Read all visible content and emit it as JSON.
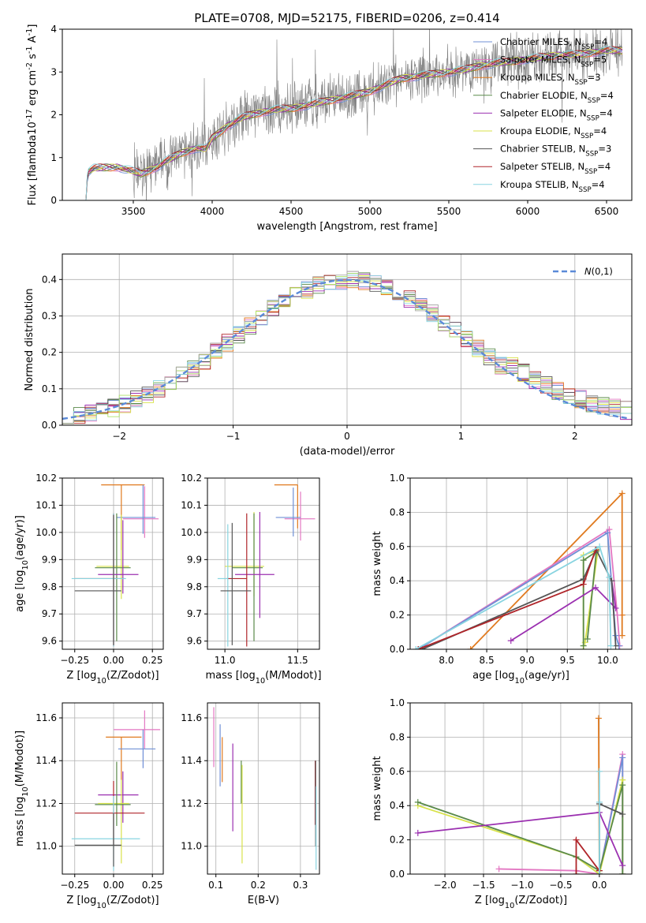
{
  "colors": {
    "Chabrier MILES": "#6f8fd6",
    "Salpeter MILES": "#e377c2",
    "Kroupa MILES": "#e07a1f",
    "Chabrier ELODIE": "#5a8a4a",
    "Salpeter ELODIE": "#9b30b0",
    "Kroupa ELODIE": "#d8e24a",
    "Chabrier STELIB": "#555555",
    "Salpeter STELIB": "#b0252a",
    "Kroupa STELIB": "#88d4e0",
    "data": "#808080",
    "normal": "#5b8ad8",
    "aux1": "#aee36a",
    "aux2": "#a9a9a9"
  },
  "chart_data": [
    {
      "id": "spectrum",
      "type": "line",
      "title": "PLATE=0708, MJD=52175, FIBERID=0206, z=0.414",
      "xlabel": "wavelength [Angstrom, rest frame]",
      "ylabel": "Flux [f$_\\lambda$10$^{-17}$ erg cm$^{-2}$ s$^{-1}$ A$^{-1}$]",
      "xlim": [
        3050,
        6660
      ],
      "ylim": [
        0,
        4
      ],
      "xticks": [
        "3500",
        "4000",
        "4500",
        "5000",
        "5500",
        "6000",
        "6500"
      ],
      "yticks": [
        "0",
        "1",
        "2",
        "3",
        "4"
      ],
      "grid": false,
      "legend_position": "right",
      "legend": [
        {
          "name": "Chabrier MILES",
          "nssp": "4"
        },
        {
          "name": "Salpeter MILES",
          "nssp": "5"
        },
        {
          "name": "Kroupa MILES",
          "nssp": "3"
        },
        {
          "name": "Chabrier ELODIE",
          "nssp": "4"
        },
        {
          "name": "Salpeter ELODIE",
          "nssp": "4"
        },
        {
          "name": "Kroupa ELODIE",
          "nssp": "4"
        },
        {
          "name": "Chabrier STELIB",
          "nssp": "3"
        },
        {
          "name": "Salpeter STELIB",
          "nssp": "4"
        },
        {
          "name": "Kroupa STELIB",
          "nssp": "4"
        }
      ],
      "model_curve": {
        "x": [
          3200,
          3210,
          3250,
          3400,
          3480,
          3550,
          3650,
          3700,
          3800,
          3900,
          3960,
          4000,
          4100,
          4200,
          4300,
          4400,
          4500,
          4600,
          4700,
          4800,
          4900,
          5000,
          5100,
          5200,
          5300,
          5400,
          5500,
          5600,
          5700,
          5800,
          5900,
          6000,
          6100,
          6200,
          6300,
          6400,
          6500,
          6600
        ],
        "y": [
          0.0,
          0.65,
          0.75,
          0.78,
          0.7,
          0.62,
          0.78,
          0.9,
          1.1,
          1.22,
          1.2,
          1.45,
          1.75,
          1.95,
          2.05,
          2.12,
          2.15,
          2.22,
          2.3,
          2.38,
          2.45,
          2.55,
          2.7,
          2.85,
          2.9,
          2.95,
          3.0,
          3.05,
          3.15,
          3.2,
          3.25,
          3.3,
          3.35,
          3.4,
          3.4,
          3.45,
          3.5,
          3.5
        ]
      },
      "data_noise_start": 3500,
      "data_noise_amplitude": 0.9
    },
    {
      "id": "residuals",
      "type": "histogram",
      "xlabel": "(data-model)/error",
      "ylabel": "Normed distribution",
      "xlim": [
        -2.5,
        2.5
      ],
      "ylim": [
        0,
        0.47
      ],
      "xticks": [
        "−2",
        "−1",
        "0",
        "1",
        "2"
      ],
      "yticks": [
        "0.0",
        "0.1",
        "0.2",
        "0.3",
        "0.4"
      ],
      "grid": true,
      "legend_position": "upper right",
      "legend": "$\\mathcal{N}(0,1)$",
      "bin_width": 0.1,
      "normal_mean": 0,
      "normal_sigma": 1
    },
    {
      "id": "age-vs-Z",
      "type": "errorbar",
      "xlabel": "Z [log$_{10}$(Z/Z$_\\odot$)]",
      "ylabel": "age  [log$_{10}$(age/yr)]",
      "xlim": [
        -0.33,
        0.32
      ],
      "ylim": [
        9.57,
        10.2
      ],
      "xticks": [
        "−0.25",
        "0.00",
        "0.25"
      ],
      "yticks": [
        "9.6",
        "9.7",
        "9.8",
        "9.9",
        "10.0",
        "10.1",
        "10.2"
      ],
      "points": [
        {
          "model": "Kroupa MILES",
          "x": 0.05,
          "y": 10.175,
          "xerr": [
            0.13,
            0.15
          ],
          "yerr": [
            0.24,
            0.0
          ]
        },
        {
          "model": "Salpeter MILES",
          "x": 0.2,
          "y": 10.05,
          "xerr": [
            0.14,
            0.09
          ],
          "yerr": [
            0.07,
            0.12
          ]
        },
        {
          "model": "Chabrier MILES",
          "x": 0.19,
          "y": 10.055,
          "xerr": [
            0.17,
            0.08
          ],
          "yerr": [
            0.06,
            0.12
          ]
        },
        {
          "model": "Kroupa ELODIE",
          "x": 0.05,
          "y": 9.875,
          "xerr": [
            0.16,
            0.05
          ],
          "yerr": [
            0.12,
            0.19
          ]
        },
        {
          "model": "Chabrier ELODIE",
          "x": 0.02,
          "y": 9.87,
          "xerr": [
            0.14,
            0.09
          ],
          "yerr": [
            0.27,
            0.2
          ]
        },
        {
          "model": "Salpeter ELODIE",
          "x": 0.06,
          "y": 9.845,
          "xerr": [
            0.16,
            0.1
          ],
          "yerr": [
            0.07,
            0.2
          ]
        },
        {
          "model": "Salpeter STELIB",
          "x": 0.0,
          "y": 9.83,
          "xerr": [
            0.25,
            0.07
          ],
          "yerr": [
            0.25,
            0.24
          ]
        },
        {
          "model": "Kroupa STELIB",
          "x": 0.0,
          "y": 9.83,
          "xerr": [
            0.27,
            0.08
          ],
          "yerr": [
            0.25,
            0.24
          ]
        },
        {
          "model": "Chabrier STELIB",
          "x": 0.0,
          "y": 9.785,
          "xerr": [
            0.25,
            0.05
          ],
          "yerr": [
            0.2,
            0.28
          ]
        }
      ]
    },
    {
      "id": "age-vs-mass",
      "type": "errorbar",
      "xlabel": "mass [log$_{10}$(M/M$_\\odot$)]",
      "ylabel": "",
      "xlim": [
        10.88,
        11.65
      ],
      "ylim": [
        9.57,
        10.2
      ],
      "xticks": [
        "11.0",
        "11.5"
      ],
      "yticks": [
        "9.6",
        "9.7",
        "9.8",
        "9.9",
        "10.0",
        "10.1",
        "10.2"
      ],
      "points": [
        {
          "model": "Kroupa MILES",
          "x": 11.5,
          "y": 10.175,
          "xerr": [
            0.16,
            0.0
          ],
          "yerr": [
            0.16,
            0.0
          ]
        },
        {
          "model": "Salpeter MILES",
          "x": 11.52,
          "y": 10.05,
          "xerr": [
            0.11,
            0.1
          ],
          "yerr": [
            0.08,
            0.1
          ]
        },
        {
          "model": "Chabrier MILES",
          "x": 11.47,
          "y": 10.055,
          "xerr": [
            0.12,
            0.05
          ],
          "yerr": [
            0.07,
            0.11
          ]
        },
        {
          "model": "Kroupa ELODIE",
          "x": 11.2,
          "y": 9.875,
          "xerr": [
            0.2,
            0.07
          ],
          "yerr": [
            0.11,
            0.2
          ]
        },
        {
          "model": "Chabrier ELODIE",
          "x": 11.2,
          "y": 9.87,
          "xerr": [
            0.15,
            0.06
          ],
          "yerr": [
            0.27,
            0.2
          ]
        },
        {
          "model": "Salpeter ELODIE",
          "x": 11.24,
          "y": 9.845,
          "xerr": [
            0.17,
            0.1
          ],
          "yerr": [
            0.16,
            0.23
          ]
        },
        {
          "model": "Salpeter STELIB",
          "x": 11.15,
          "y": 9.83,
          "xerr": [
            0.14,
            0.0
          ],
          "yerr": [
            0.25,
            0.24
          ]
        },
        {
          "model": "Kroupa STELIB",
          "x": 11.02,
          "y": 9.83,
          "xerr": [
            0.07,
            0.0
          ],
          "yerr": [
            0.25,
            0.2
          ]
        },
        {
          "model": "Chabrier STELIB",
          "x": 11.05,
          "y": 9.785,
          "xerr": [
            0.08,
            0.13
          ],
          "yerr": [
            0.2,
            0.25
          ]
        }
      ]
    },
    {
      "id": "mass-weight-vs-age",
      "type": "line",
      "xlabel": "age  [log$_{10}$(age/yr)]",
      "ylabel": "mass weight",
      "xlim": [
        7.55,
        10.3
      ],
      "ylim": [
        0,
        1
      ],
      "xticks": [
        "8.0",
        "8.5",
        "9.0",
        "9.5",
        "10.0"
      ],
      "yticks": [
        "0.0",
        "0.2",
        "0.4",
        "0.6",
        "0.8",
        "1.0"
      ],
      "grid": true,
      "series": [
        {
          "model": "Kroupa MILES",
          "x": [
            8.3,
            10.18,
            10.18,
            10.18
          ],
          "y": [
            0.0,
            0.91,
            0.2,
            0.08
          ]
        },
        {
          "model": "Salpeter MILES",
          "x": [
            7.65,
            10.02,
            10.12,
            10.15
          ],
          "y": [
            0.0,
            0.7,
            0.2,
            0.02
          ]
        },
        {
          "model": "Chabrier MILES",
          "x": [
            7.65,
            10.0,
            10.1,
            10.14
          ],
          "y": [
            0.0,
            0.68,
            0.08,
            0.02
          ]
        },
        {
          "model": "Kroupa ELODIE",
          "x": [
            9.7,
            9.7,
            9.88,
            9.72
          ],
          "y": [
            0.0,
            0.55,
            0.58,
            0.04
          ]
        },
        {
          "model": "Chabrier ELODIE",
          "x": [
            9.7,
            9.7,
            9.86,
            9.75
          ],
          "y": [
            0.02,
            0.52,
            0.57,
            0.06
          ]
        },
        {
          "model": "Salpeter ELODIE",
          "x": [
            8.8,
            9.85,
            10.1,
            10.05
          ],
          "y": [
            0.05,
            0.36,
            0.24,
            0.4
          ]
        },
        {
          "model": "Chabrier STELIB",
          "x": [
            7.7,
            9.7,
            9.86,
            10.05,
            10.1
          ],
          "y": [
            0.0,
            0.41,
            0.58,
            0.4,
            0.02
          ]
        },
        {
          "model": "Salpeter STELIB",
          "x": [
            7.65,
            9.7,
            9.85
          ],
          "y": [
            0.0,
            0.38,
            0.58
          ]
        },
        {
          "model": "Kroupa STELIB",
          "x": [
            7.62,
            9.9,
            10.02,
            10.04
          ],
          "y": [
            0.0,
            0.6,
            0.42,
            0.02
          ]
        }
      ]
    },
    {
      "id": "mass-vs-Z",
      "type": "errorbar",
      "xlabel": "Z [log$_{10}$(Z/Z$_\\odot$)]",
      "ylabel": "mass [log$_{10}$(M/M$_\\odot$)]",
      "xlim": [
        -0.33,
        0.32
      ],
      "ylim": [
        10.87,
        11.67
      ],
      "xticks": [
        "−0.25",
        "0.00",
        "0.25"
      ],
      "yticks": [
        "11.0",
        "11.2",
        "11.4",
        "11.6"
      ],
      "points": [
        {
          "model": "Salpeter MILES",
          "x": 0.2,
          "y": 11.545,
          "xerr": [
            0.2,
            0.1
          ],
          "yerr": [
            0.09,
            0.09
          ]
        },
        {
          "model": "Kroupa MILES",
          "x": 0.05,
          "y": 11.51,
          "xerr": [
            0.1,
            0.13
          ],
          "yerr": [
            0.2,
            0.0
          ]
        },
        {
          "model": "Chabrier MILES",
          "x": 0.19,
          "y": 11.455,
          "xerr": [
            0.16,
            0.08
          ],
          "yerr": [
            0.09,
            0.09
          ]
        },
        {
          "model": "Salpeter ELODIE",
          "x": 0.06,
          "y": 11.24,
          "xerr": [
            0.16,
            0.1
          ],
          "yerr": [
            0.13,
            0.11
          ]
        },
        {
          "model": "Kroupa ELODIE",
          "x": 0.05,
          "y": 11.2,
          "xerr": [
            0.15,
            0.05
          ],
          "yerr": [
            0.28,
            0.11
          ]
        },
        {
          "model": "Chabrier ELODIE",
          "x": 0.02,
          "y": 11.195,
          "xerr": [
            0.14,
            0.09
          ],
          "yerr": [
            0.1,
            0.2
          ]
        },
        {
          "model": "Salpeter STELIB",
          "x": 0.0,
          "y": 11.155,
          "xerr": [
            0.25,
            0.2
          ],
          "yerr": [
            0.15,
            0.15
          ]
        },
        {
          "model": "Kroupa STELIB",
          "x": 0.0,
          "y": 11.035,
          "xerr": [
            0.27,
            0.17
          ],
          "yerr": [
            0.15,
            0.2
          ]
        },
        {
          "model": "Chabrier STELIB",
          "x": 0.0,
          "y": 11.005,
          "xerr": [
            0.25,
            0.05
          ],
          "yerr": [
            0.1,
            0.15
          ]
        }
      ]
    },
    {
      "id": "mass-vs-ebv",
      "type": "errorbar",
      "xlabel": "E(B-V)",
      "ylabel": "",
      "xlim": [
        0.08,
        0.345
      ],
      "ylim": [
        10.87,
        11.67
      ],
      "xticks": [
        "0.1",
        "0.2",
        "0.3"
      ],
      "yticks": [
        "11.0",
        "11.2",
        "11.4",
        "11.6"
      ],
      "points": [
        {
          "model": "Salpeter MILES",
          "x": 0.095,
          "y": 11.5,
          "xerr": [
            0,
            0
          ],
          "yerr": [
            0.13,
            0.15
          ]
        },
        {
          "model": "Chabrier MILES",
          "x": 0.11,
          "y": 11.43,
          "xerr": [
            0,
            0
          ],
          "yerr": [
            0.15,
            0.14
          ]
        },
        {
          "model": "Kroupa MILES",
          "x": 0.115,
          "y": 11.4,
          "xerr": [
            0,
            0
          ],
          "yerr": [
            0.1,
            0.11
          ]
        },
        {
          "model": "Salpeter ELODIE",
          "x": 0.14,
          "y": 11.27,
          "xerr": [
            0,
            0
          ],
          "yerr": [
            0.2,
            0.21
          ]
        },
        {
          "model": "Chabrier ELODIE",
          "x": 0.16,
          "y": 11.35,
          "xerr": [
            0,
            0
          ],
          "yerr": [
            0.15,
            0.05
          ]
        },
        {
          "model": "Kroupa ELODIE",
          "x": 0.162,
          "y": 11.15,
          "xerr": [
            0,
            0
          ],
          "yerr": [
            0.23,
            0.23
          ]
        },
        {
          "model": "Salpeter STELIB",
          "x": 0.335,
          "y": 11.4,
          "xerr": [
            0,
            0
          ],
          "yerr": [
            0.3,
            0.0
          ]
        },
        {
          "model": "Chabrier STELIB",
          "x": 0.336,
          "y": 11.25,
          "xerr": [
            0,
            0
          ],
          "yerr": [
            0.25,
            0.15
          ]
        },
        {
          "model": "Kroupa STELIB",
          "x": 0.337,
          "y": 11.1,
          "xerr": [
            0,
            0
          ],
          "yerr": [
            0.21,
            0.18
          ]
        }
      ]
    },
    {
      "id": "mass-weight-vs-Z",
      "type": "line",
      "xlabel": "Z [log$_{10}$(Z/Z$_\\odot$)]",
      "ylabel": "mass weight",
      "xlim": [
        -2.45,
        0.42
      ],
      "ylim": [
        0,
        1
      ],
      "xticks": [
        "−2.0",
        "−1.5",
        "−1.0",
        "−0.5",
        "0.0"
      ],
      "yticks": [
        "0.0",
        "0.2",
        "0.4",
        "0.6",
        "0.8",
        "1.0"
      ],
      "grid": true,
      "series": [
        {
          "model": "Kroupa MILES",
          "x": [
            0.0,
            -0.01,
            0.0
          ],
          "y": [
            0.0,
            0.91,
            0.0
          ]
        },
        {
          "model": "Salpeter MILES",
          "x": [
            -1.3,
            -0.3,
            0.0,
            0.3,
            0.3
          ],
          "y": [
            0.03,
            0.02,
            0.0,
            0.7,
            0.0
          ]
        },
        {
          "model": "Chabrier MILES",
          "x": [
            -0.3,
            0.0,
            0.3,
            0.3
          ],
          "y": [
            0.1,
            0.0,
            0.68,
            0.0
          ]
        },
        {
          "model": "Kroupa ELODIE",
          "x": [
            -2.35,
            -0.3,
            0.0,
            0.3,
            0.3
          ],
          "y": [
            0.4,
            0.1,
            0.0,
            0.55,
            0.0
          ]
        },
        {
          "model": "Chabrier ELODIE",
          "x": [
            -2.35,
            -0.3,
            0.0,
            0.3,
            0.3
          ],
          "y": [
            0.42,
            0.1,
            0.02,
            0.52,
            0.0
          ]
        },
        {
          "model": "Salpeter ELODIE",
          "x": [
            -2.35,
            0.0,
            0.3
          ],
          "y": [
            0.24,
            0.36,
            0.05
          ]
        },
        {
          "model": "Chabrier STELIB",
          "x": [
            0.0,
            0.0,
            0.3
          ],
          "y": [
            0.0,
            0.41,
            0.35
          ]
        },
        {
          "model": "Salpeter STELIB",
          "x": [
            -0.3,
            -0.3,
            0.0
          ],
          "y": [
            0.0,
            0.2,
            0.02
          ]
        },
        {
          "model": "Kroupa STELIB",
          "x": [
            0.0,
            0.0,
            0.0
          ],
          "y": [
            0.0,
            0.6,
            0.42
          ]
        }
      ]
    }
  ]
}
